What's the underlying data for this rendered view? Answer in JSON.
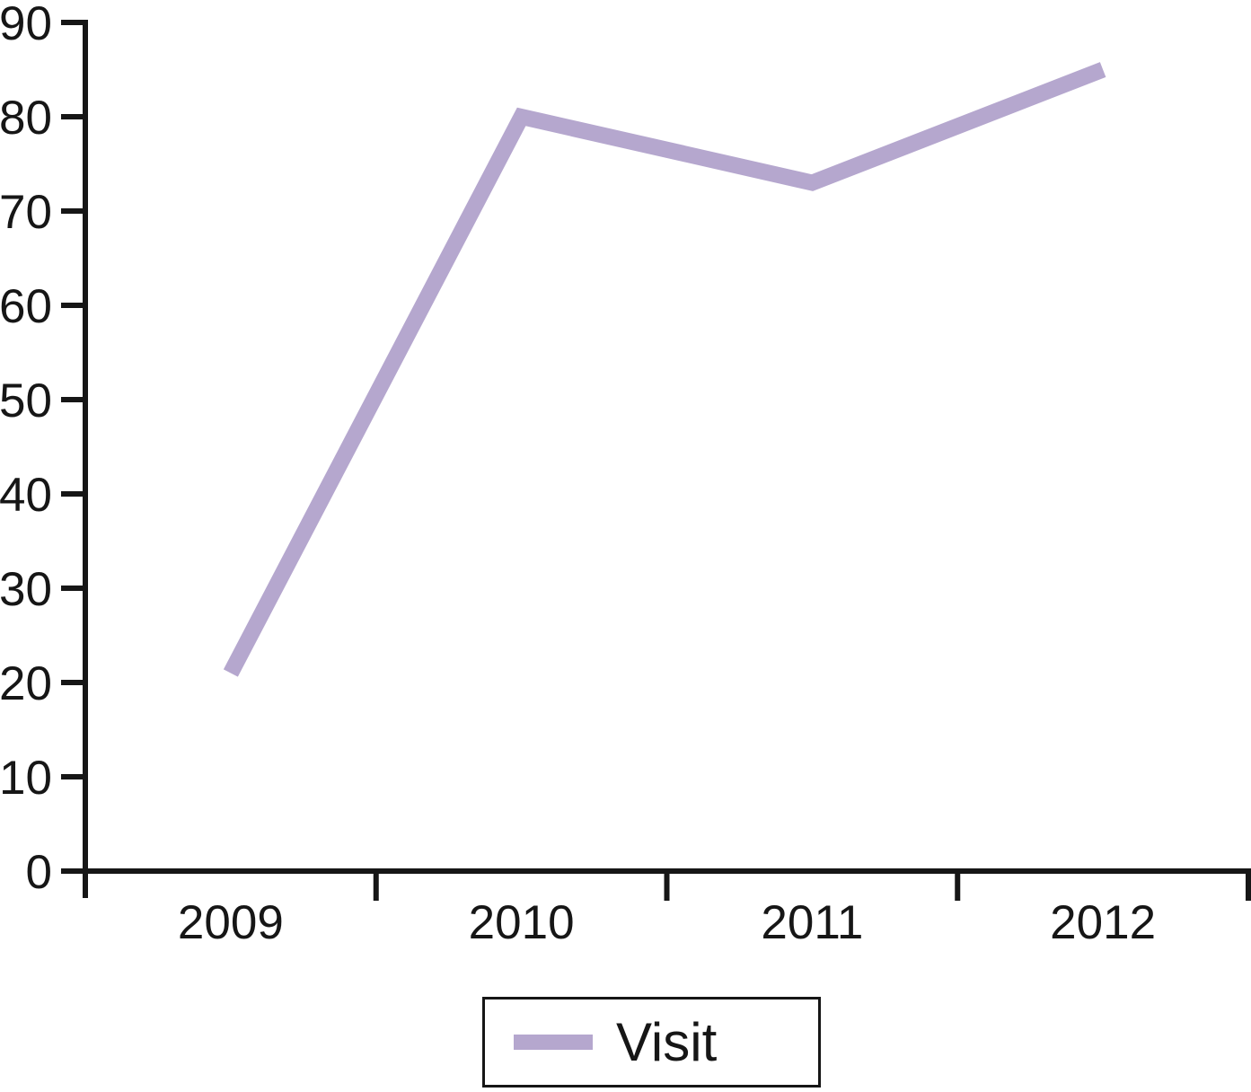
{
  "chart_data": {
    "type": "line",
    "title": "",
    "xlabel": "",
    "ylabel": "",
    "categories": [
      "2009",
      "2010",
      "2011",
      "2012"
    ],
    "series": [
      {
        "name": "Visit",
        "values": [
          21,
          80,
          73,
          85
        ],
        "color": "#b5a7ce"
      }
    ],
    "ylim": [
      0,
      90
    ],
    "yticks": [
      0,
      10,
      20,
      30,
      40,
      50,
      60,
      70,
      80,
      90
    ],
    "grid": false,
    "legend_position": "bottom-center",
    "axis_color": "#161616",
    "tick_style": "outward",
    "x_tick_placement": "between-categories"
  },
  "legend": {
    "label": "Visit",
    "swatch_color": "#b5a7ce"
  }
}
